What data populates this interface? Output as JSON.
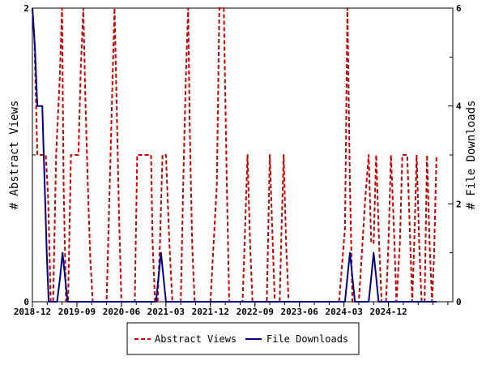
{
  "chart_data": {
    "type": "line",
    "xlabel": "",
    "ylabel_left": "# Abstract Views",
    "ylabel_right": "# File Downloads",
    "x_tick_labels": [
      "2018-12",
      "2019-09",
      "2020-06",
      "2021-03",
      "2021-12",
      "2022-09",
      "2023-06",
      "2024-03",
      "2024-12"
    ],
    "x_range_months": [
      0,
      85
    ],
    "y_left": {
      "range": [
        0,
        2
      ],
      "tick_labels": [
        "0",
        "2"
      ],
      "minor_ticks": [
        1
      ]
    },
    "y_right": {
      "range": [
        0,
        6
      ],
      "tick_labels": [
        "0",
        "2",
        "4",
        "6"
      ]
    },
    "grid": false,
    "legend_position": "bottom",
    "series": [
      {
        "name": "Abstract Views",
        "axis": "left",
        "color": "#cc0000",
        "dash": "dashed",
        "points": [
          [
            0,
            2
          ],
          [
            0.4,
            1.8
          ],
          [
            1,
            1
          ],
          [
            1.6,
            1
          ],
          [
            2.7,
            1
          ],
          [
            3.2,
            0.7
          ],
          [
            3.7,
            0
          ],
          [
            4.2,
            0
          ],
          [
            4.8,
            1
          ],
          [
            5.5,
            1.5
          ],
          [
            6,
            2
          ],
          [
            6.3,
            0.8
          ],
          [
            6.8,
            0
          ],
          [
            7.2,
            0
          ],
          [
            7.8,
            1
          ],
          [
            8.3,
            1
          ],
          [
            8.8,
            1
          ],
          [
            9.3,
            1
          ],
          [
            9.8,
            1.6
          ],
          [
            10.3,
            2
          ],
          [
            10.7,
            1.4
          ],
          [
            11.2,
            0.8
          ],
          [
            11.7,
            0.3
          ],
          [
            12.2,
            0
          ],
          [
            13,
            0
          ],
          [
            14,
            0
          ],
          [
            15,
            0
          ],
          [
            15.8,
            1
          ],
          [
            16.2,
            1.5
          ],
          [
            16.6,
            2
          ],
          [
            17,
            1.4
          ],
          [
            17.5,
            0.6
          ],
          [
            18,
            0
          ],
          [
            19,
            0
          ],
          [
            20,
            0
          ],
          [
            20.7,
            0
          ],
          [
            21.2,
            1
          ],
          [
            21.8,
            1
          ],
          [
            22.5,
            1
          ],
          [
            23.3,
            1
          ],
          [
            24,
            1
          ],
          [
            24.3,
            0.4
          ],
          [
            24.8,
            0
          ],
          [
            25.3,
            0
          ],
          [
            25.8,
            0.4
          ],
          [
            26.3,
            1
          ],
          [
            27,
            1
          ],
          [
            27.7,
            0.4
          ],
          [
            28.3,
            0
          ],
          [
            29,
            0
          ],
          [
            30,
            0
          ],
          [
            30.5,
            0.8
          ],
          [
            31,
            1.5
          ],
          [
            31.5,
            2
          ],
          [
            31.8,
            1.2
          ],
          [
            32.3,
            0.4
          ],
          [
            32.8,
            0
          ],
          [
            34,
            0
          ],
          [
            35,
            0
          ],
          [
            36,
            0
          ],
          [
            37.3,
            0.8
          ],
          [
            37.8,
            2
          ],
          [
            38.7,
            2
          ],
          [
            39.3,
            0.8
          ],
          [
            39.8,
            0
          ],
          [
            41,
            0
          ],
          [
            42,
            0
          ],
          [
            42.5,
            0
          ],
          [
            43,
            0.5
          ],
          [
            43.5,
            1
          ],
          [
            44,
            0.4
          ],
          [
            44.5,
            0
          ],
          [
            46,
            0
          ],
          [
            47,
            0
          ],
          [
            47.4,
            0
          ],
          [
            48,
            1
          ],
          [
            48.6,
            0.4
          ],
          [
            49,
            0
          ],
          [
            50,
            0
          ],
          [
            50.3,
            0.4
          ],
          [
            50.8,
            1
          ],
          [
            51.3,
            0.4
          ],
          [
            51.8,
            0
          ],
          [
            53,
            0
          ],
          [
            55,
            0
          ],
          [
            57,
            0
          ],
          [
            60,
            0
          ],
          [
            62,
            0
          ],
          [
            63.2,
            0.5
          ],
          [
            63.7,
            2
          ],
          [
            64.2,
            0.8
          ],
          [
            64.7,
            0
          ],
          [
            65.2,
            0
          ],
          [
            66,
            0
          ],
          [
            67.3,
            0.7
          ],
          [
            68,
            1
          ],
          [
            68.5,
            0.4
          ],
          [
            69,
            0.4
          ],
          [
            69.5,
            1
          ],
          [
            70.1,
            0.4
          ],
          [
            70.6,
            0
          ],
          [
            71.5,
            0
          ],
          [
            72,
            0.4
          ],
          [
            72.5,
            1
          ],
          [
            73.1,
            0.5
          ],
          [
            73.6,
            0
          ],
          [
            74.3,
            0.4
          ],
          [
            74.8,
            1
          ],
          [
            75.8,
            1
          ],
          [
            76.4,
            0.4
          ],
          [
            76.8,
            0
          ],
          [
            77.2,
            0.4
          ],
          [
            77.7,
            1
          ],
          [
            78.2,
            0.4
          ],
          [
            78.7,
            0
          ],
          [
            79.3,
            0
          ],
          [
            79.8,
            1
          ],
          [
            80.3,
            0.4
          ],
          [
            80.8,
            0
          ],
          [
            81.2,
            0.3
          ],
          [
            81.7,
            1
          ]
        ]
      },
      {
        "name": "File Downloads",
        "axis": "right",
        "color": "#00008b",
        "dash": "solid",
        "points": [
          [
            0,
            6
          ],
          [
            0.5,
            5.2
          ],
          [
            1,
            4
          ],
          [
            1.6,
            4
          ],
          [
            2,
            4
          ],
          [
            2.3,
            3
          ],
          [
            2.6,
            2
          ],
          [
            2.9,
            1
          ],
          [
            3.3,
            0
          ],
          [
            4,
            0
          ],
          [
            5,
            0
          ],
          [
            5.6,
            0.5
          ],
          [
            6.1,
            1
          ],
          [
            6.6,
            0.5
          ],
          [
            7.1,
            0
          ],
          [
            10,
            0
          ],
          [
            15,
            0
          ],
          [
            20,
            0
          ],
          [
            24,
            0
          ],
          [
            25,
            0
          ],
          [
            25.5,
            0.5
          ],
          [
            26,
            1
          ],
          [
            26.5,
            0.5
          ],
          [
            27,
            0
          ],
          [
            30,
            0
          ],
          [
            40,
            0
          ],
          [
            50,
            0
          ],
          [
            60,
            0
          ],
          [
            63.2,
            0
          ],
          [
            63.7,
            0.5
          ],
          [
            64.2,
            1
          ],
          [
            64.7,
            0.5
          ],
          [
            65.2,
            0
          ],
          [
            68,
            0
          ],
          [
            68.5,
            0.5
          ],
          [
            69,
            1
          ],
          [
            69.5,
            0.5
          ],
          [
            70,
            0
          ],
          [
            75,
            0
          ],
          [
            81.7,
            0
          ]
        ]
      }
    ]
  }
}
